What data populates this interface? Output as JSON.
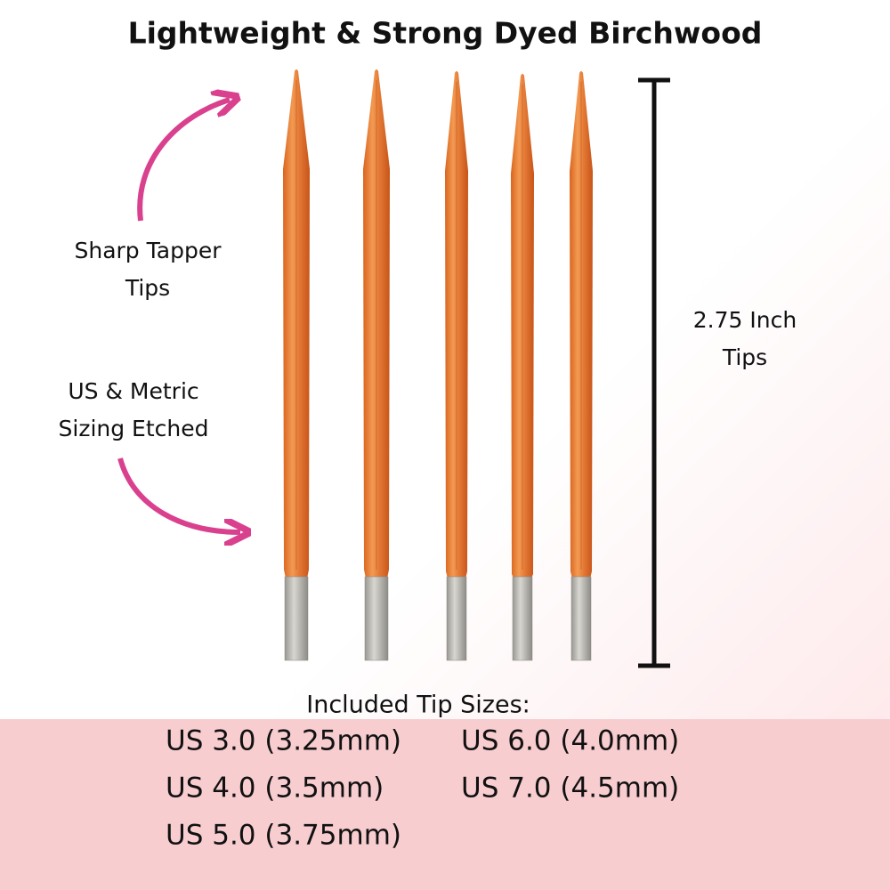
{
  "title": "Lightweight & Strong Dyed Birchwood",
  "callouts": {
    "tips": [
      "Sharp Tapper",
      "Tips"
    ],
    "sizing": [
      "US & Metric",
      "Sizing Etched"
    ],
    "length": [
      "2.75 Inch",
      "Tips"
    ]
  },
  "sizes": {
    "heading": "Included Tip Sizes:",
    "left": [
      "US 3.0 (3.25mm)",
      "US 4.0 (3.5mm)",
      "US 5.0 (3.75mm)"
    ],
    "right": [
      "US 6.0 (4.0mm)",
      "US 7.0 (4.5mm)"
    ]
  }
}
